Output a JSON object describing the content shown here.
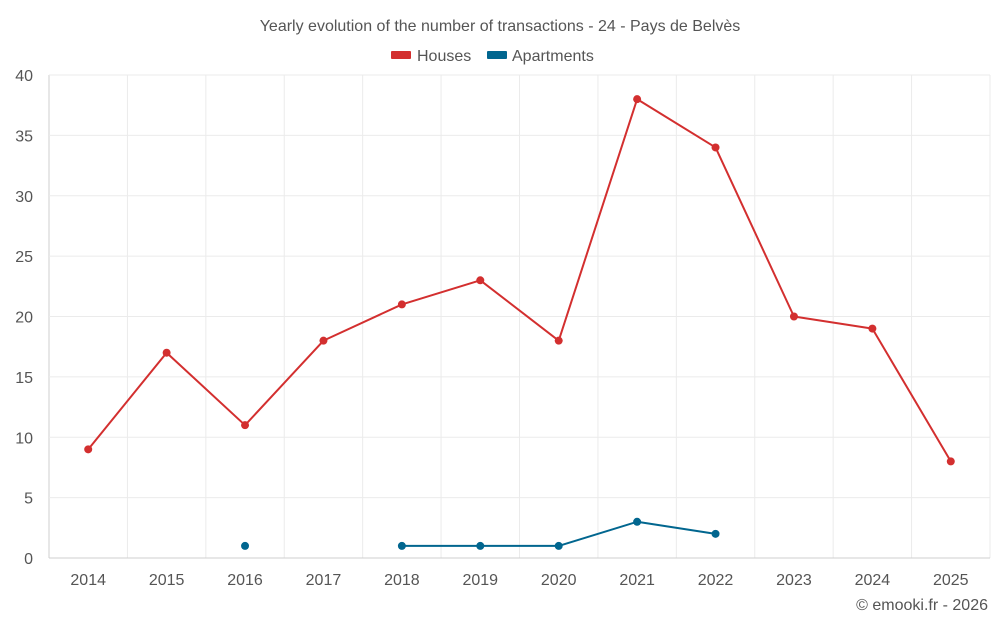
{
  "chart_data": {
    "type": "line",
    "title": "Yearly evolution of the number of transactions - 24 - Pays de Belvès",
    "xlabel": "",
    "ylabel": "",
    "categories": [
      "2014",
      "2015",
      "2016",
      "2017",
      "2018",
      "2019",
      "2020",
      "2021",
      "2022",
      "2023",
      "2024",
      "2025"
    ],
    "ylim": [
      0,
      40
    ],
    "yticks": [
      "0",
      "5",
      "10",
      "15",
      "20",
      "25",
      "30",
      "35",
      "40"
    ],
    "grid": true,
    "legend_position": "top-center",
    "series": [
      {
        "name": "Houses",
        "color": "#d32f2f",
        "values": [
          9,
          17,
          11,
          18,
          21,
          23,
          18,
          38,
          34,
          20,
          19,
          8
        ]
      },
      {
        "name": "Apartments",
        "color": "#01668f",
        "values": [
          null,
          null,
          1,
          null,
          1,
          1,
          1,
          3,
          2,
          null,
          null,
          null
        ]
      }
    ],
    "credit": "© emooki.fr - 2026"
  }
}
